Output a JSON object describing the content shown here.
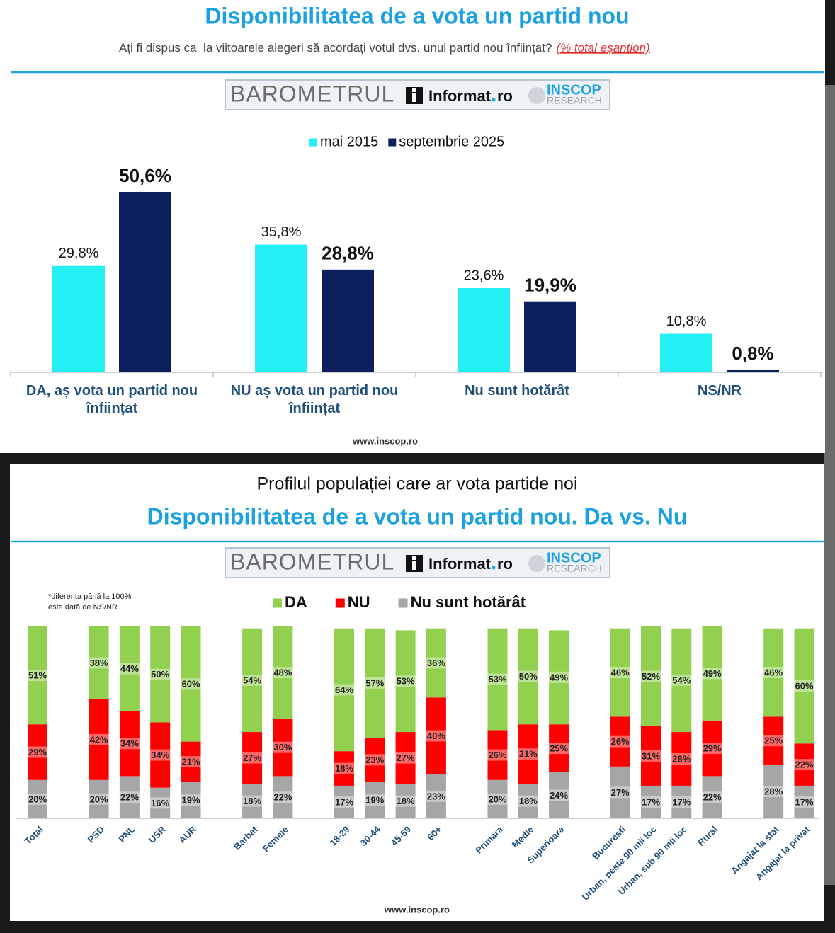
{
  "chart_data": [
    {
      "type": "bar",
      "title": "Disponibilitatea de a vota un partid nou",
      "subtitle": "Ați fi dispus ca  la viitoarele alegeri să acordați votul dvs. unui partid nou înființat?",
      "subtitle_note": "(% total eșantion)",
      "logo": {
        "word": "BAROMETRUL",
        "brand": "Informat",
        "domain": "ro",
        "partner": "INSCOP",
        "partner_sub": "RESEARCH"
      },
      "categories": [
        "DA, aș vota un partid nou înființat",
        "NU aș vota un partid nou înființat",
        "Nu sunt hotărât",
        "NS/NR"
      ],
      "series": [
        {
          "name": "mai 2015",
          "color": "#22f0f5",
          "values": [
            29.8,
            35.8,
            23.6,
            10.8
          ],
          "value_labels": [
            "29,8%",
            "35,8%",
            "23,6%",
            "10,8%"
          ]
        },
        {
          "name": "septembrie 2025",
          "color": "#0d1f5c",
          "values": [
            50.6,
            28.8,
            19.9,
            0.8
          ],
          "value_labels": [
            "50,6%",
            "28,8%",
            "19,9%",
            "0,8%"
          ]
        }
      ],
      "source": "www.inscop.ro"
    },
    {
      "type": "stacked_bar",
      "supertitle": "Profilul populației care ar vota partide noi",
      "title": "Disponibilitatea de a vota un partid nou. Da vs. Nu",
      "logo": {
        "word": "BAROMETRUL",
        "brand": "Informat",
        "domain": "ro",
        "partner": "INSCOP",
        "partner_sub": "RESEARCH"
      },
      "note": [
        "*diferența până la 100%",
        "este dată de NS/NR"
      ],
      "categories": [
        "Total",
        "PSD",
        "PNL",
        "USR",
        "AUR",
        "Barbat",
        "Femeie",
        "18-29",
        "30-44",
        "45-59",
        "60+",
        "Primara",
        "Medie",
        "Superioara",
        "Bucuresti",
        "Urban, peste 90 mii loc",
        "Urban, sub 90 mii loc",
        "Rural",
        "Angajat la stat",
        "Angajat la privat"
      ],
      "series": [
        {
          "name": "DA",
          "color": "#92d050",
          "values": [
            51,
            38,
            44,
            50,
            60,
            54,
            48,
            64,
            57,
            53,
            36,
            53,
            50,
            49,
            46,
            52,
            54,
            49,
            46,
            60
          ],
          "value_labels": [
            "51%",
            "38%",
            "44%",
            "50%",
            "60%",
            "54%",
            "48%",
            "64%",
            "57%",
            "53%",
            "36%",
            "53%",
            "50%",
            "49%",
            "46%",
            "52%",
            "54%",
            "49%",
            "46%",
            "60%"
          ]
        },
        {
          "name": "NU",
          "color": "#ff0000",
          "values": [
            29,
            42,
            34,
            34,
            21,
            27,
            30,
            18,
            23,
            27,
            40,
            26,
            31,
            25,
            26,
            31,
            28,
            29,
            25,
            22
          ],
          "value_labels": [
            "29%",
            "42%",
            "34%",
            "34%",
            "21%",
            "27%",
            "30%",
            "18%",
            "23%",
            "27%",
            "40%",
            "26%",
            "31%",
            "25%",
            "26%",
            "31%",
            "28%",
            "29%",
            "25%",
            "22%"
          ]
        },
        {
          "name": "Nu sunt hotărât",
          "color": "#a6a6a6",
          "values": [
            20,
            20,
            22,
            16,
            19,
            18,
            22,
            17,
            19,
            18,
            23,
            20,
            18,
            24,
            27,
            17,
            17,
            22,
            28,
            17
          ],
          "value_labels": [
            "20%",
            "20%",
            "22%",
            "16%",
            "19%",
            "18%",
            "22%",
            "17%",
            "19%",
            "18%",
            "23%",
            "20%",
            "18%",
            "24%",
            "27%",
            "17%",
            "17%",
            "22%",
            "28%",
            "17%"
          ]
        }
      ],
      "source": "www.inscop.ro"
    }
  ]
}
